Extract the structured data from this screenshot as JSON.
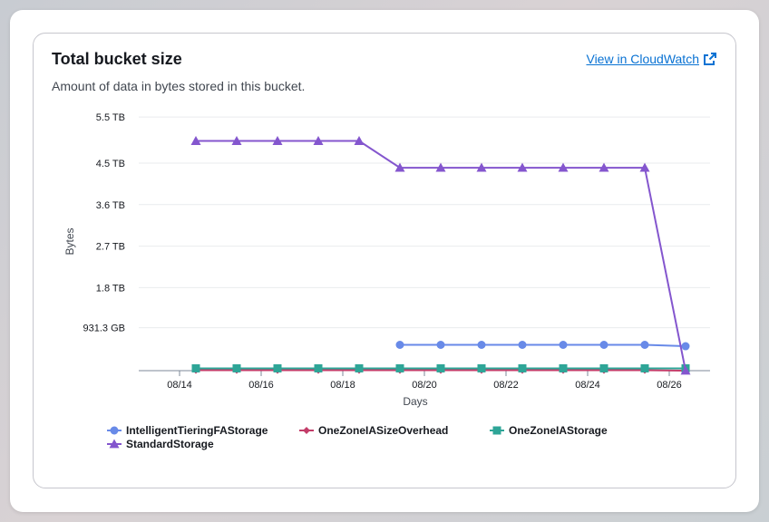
{
  "card": {
    "title": "Total bucket size",
    "subtitle": "Amount of data in bytes stored in this bucket.",
    "link_label": "View in CloudWatch",
    "link_icon": "external-link-icon"
  },
  "colors": {
    "IntelligentTieringFAStorage": "#688ae8",
    "OneZoneIASizeOverhead": "#c33d69",
    "OneZoneIAStorage": "#2ea597",
    "StandardStorage": "#8456ce"
  },
  "chart_data": {
    "type": "line",
    "title": "Total bucket size",
    "xlabel": "Days",
    "ylabel": "Bytes",
    "ylim": [
      0,
      5.6
    ],
    "y_unit": "TB",
    "yticks": [
      {
        "value": 0.9313,
        "label": "931.3 GB"
      },
      {
        "value": 1.8,
        "label": "1.8 TB"
      },
      {
        "value": 2.7,
        "label": "2.7 TB"
      },
      {
        "value": 3.6,
        "label": "3.6 TB"
      },
      {
        "value": 4.5,
        "label": "4.5 TB"
      },
      {
        "value": 5.5,
        "label": "5.5 TB"
      }
    ],
    "xlim": [
      13.0,
      27.0
    ],
    "xticks": [
      {
        "value": 14,
        "label": "08/14"
      },
      {
        "value": 16,
        "label": "08/16"
      },
      {
        "value": 18,
        "label": "08/18"
      },
      {
        "value": 20,
        "label": "08/20"
      },
      {
        "value": 22,
        "label": "08/22"
      },
      {
        "value": 24,
        "label": "08/24"
      },
      {
        "value": 26,
        "label": "08/26"
      }
    ],
    "grid": true,
    "legend_position": "bottom",
    "series": [
      {
        "name": "IntelligentTieringFAStorage",
        "marker": "circle",
        "x": [
          19.4,
          20.4,
          21.4,
          22.4,
          23.4,
          24.4,
          25.4,
          26.4
        ],
        "y": [
          0.56,
          0.56,
          0.56,
          0.56,
          0.56,
          0.56,
          0.56,
          0.53
        ]
      },
      {
        "name": "OneZoneIASizeOverhead",
        "marker": "diamond",
        "x": [
          14.4,
          15.4,
          16.4,
          17.4,
          18.4,
          19.4,
          20.4,
          21.4,
          22.4,
          23.4,
          24.4,
          25.4,
          26.4
        ],
        "y": [
          0.01,
          0.01,
          0.01,
          0.01,
          0.01,
          0.01,
          0.01,
          0.01,
          0.01,
          0.01,
          0.01,
          0.01,
          0.0
        ]
      },
      {
        "name": "OneZoneIAStorage",
        "marker": "square",
        "x": [
          14.4,
          15.4,
          16.4,
          17.4,
          18.4,
          19.4,
          20.4,
          21.4,
          22.4,
          23.4,
          24.4,
          25.4,
          26.4
        ],
        "y": [
          0.05,
          0.05,
          0.05,
          0.05,
          0.05,
          0.05,
          0.05,
          0.05,
          0.05,
          0.05,
          0.05,
          0.05,
          0.05
        ]
      },
      {
        "name": "StandardStorage",
        "marker": "triangle",
        "x": [
          14.4,
          15.4,
          16.4,
          17.4,
          18.4,
          19.4,
          20.4,
          21.4,
          22.4,
          23.4,
          24.4,
          25.4,
          26.4
        ],
        "y": [
          4.98,
          4.98,
          4.98,
          4.98,
          4.98,
          4.4,
          4.4,
          4.4,
          4.4,
          4.4,
          4.4,
          4.4,
          0.0
        ]
      }
    ]
  }
}
